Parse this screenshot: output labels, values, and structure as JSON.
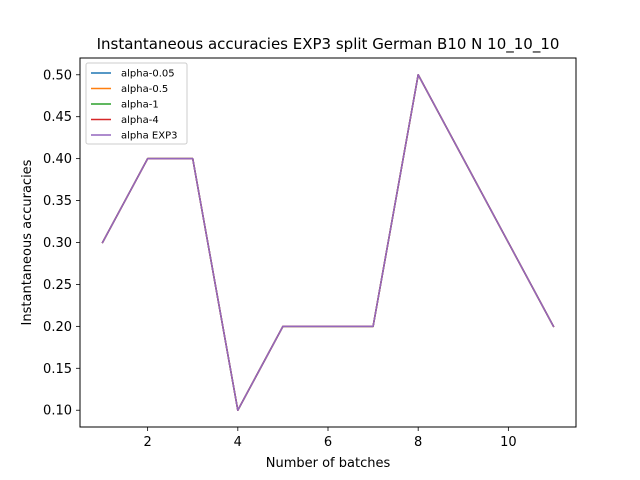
{
  "chart_data": {
    "type": "line",
    "title": "Instantaneous accuracies EXP3 split German B10 N 10_10_10",
    "xlabel": "Number of batches",
    "ylabel": "Instantaneous accuracies",
    "x": [
      1,
      2,
      3,
      4,
      5,
      6,
      7,
      8,
      9,
      10,
      11
    ],
    "xlim": [
      0.5,
      11.5
    ],
    "ylim": [
      0.08,
      0.52
    ],
    "xticks": [
      2,
      4,
      6,
      8,
      10
    ],
    "yticks": [
      0.1,
      0.15,
      0.2,
      0.25,
      0.3,
      0.35,
      0.4,
      0.45,
      0.5
    ],
    "ytick_labels": [
      "0.10",
      "0.15",
      "0.20",
      "0.25",
      "0.30",
      "0.35",
      "0.40",
      "0.45",
      "0.50"
    ],
    "grid": false,
    "legend_position": "top-left",
    "series": [
      {
        "name": "alpha-0.05",
        "color": "#1f77b4",
        "values": [
          0.3,
          0.4,
          0.4,
          0.1,
          0.2,
          0.2,
          0.2,
          0.5,
          0.4,
          0.3,
          0.2
        ]
      },
      {
        "name": "alpha-0.5",
        "color": "#ff7f0e",
        "values": [
          0.3,
          0.4,
          0.4,
          0.1,
          0.2,
          0.2,
          0.2,
          0.5,
          0.4,
          0.3,
          0.2
        ]
      },
      {
        "name": "alpha-1",
        "color": "#2ca02c",
        "values": [
          0.3,
          0.4,
          0.4,
          0.1,
          0.2,
          0.2,
          0.2,
          0.5,
          0.4,
          0.3,
          0.2
        ]
      },
      {
        "name": "alpha-4",
        "color": "#d62728",
        "values": [
          0.3,
          0.4,
          0.4,
          0.1,
          0.2,
          0.2,
          0.2,
          0.5,
          0.4,
          0.3,
          0.2
        ]
      },
      {
        "name": "alpha EXP3",
        "color": "#9467bd",
        "values": [
          0.3,
          0.4,
          0.4,
          0.1,
          0.2,
          0.2,
          0.2,
          0.5,
          0.4,
          0.3,
          0.2
        ]
      }
    ]
  }
}
